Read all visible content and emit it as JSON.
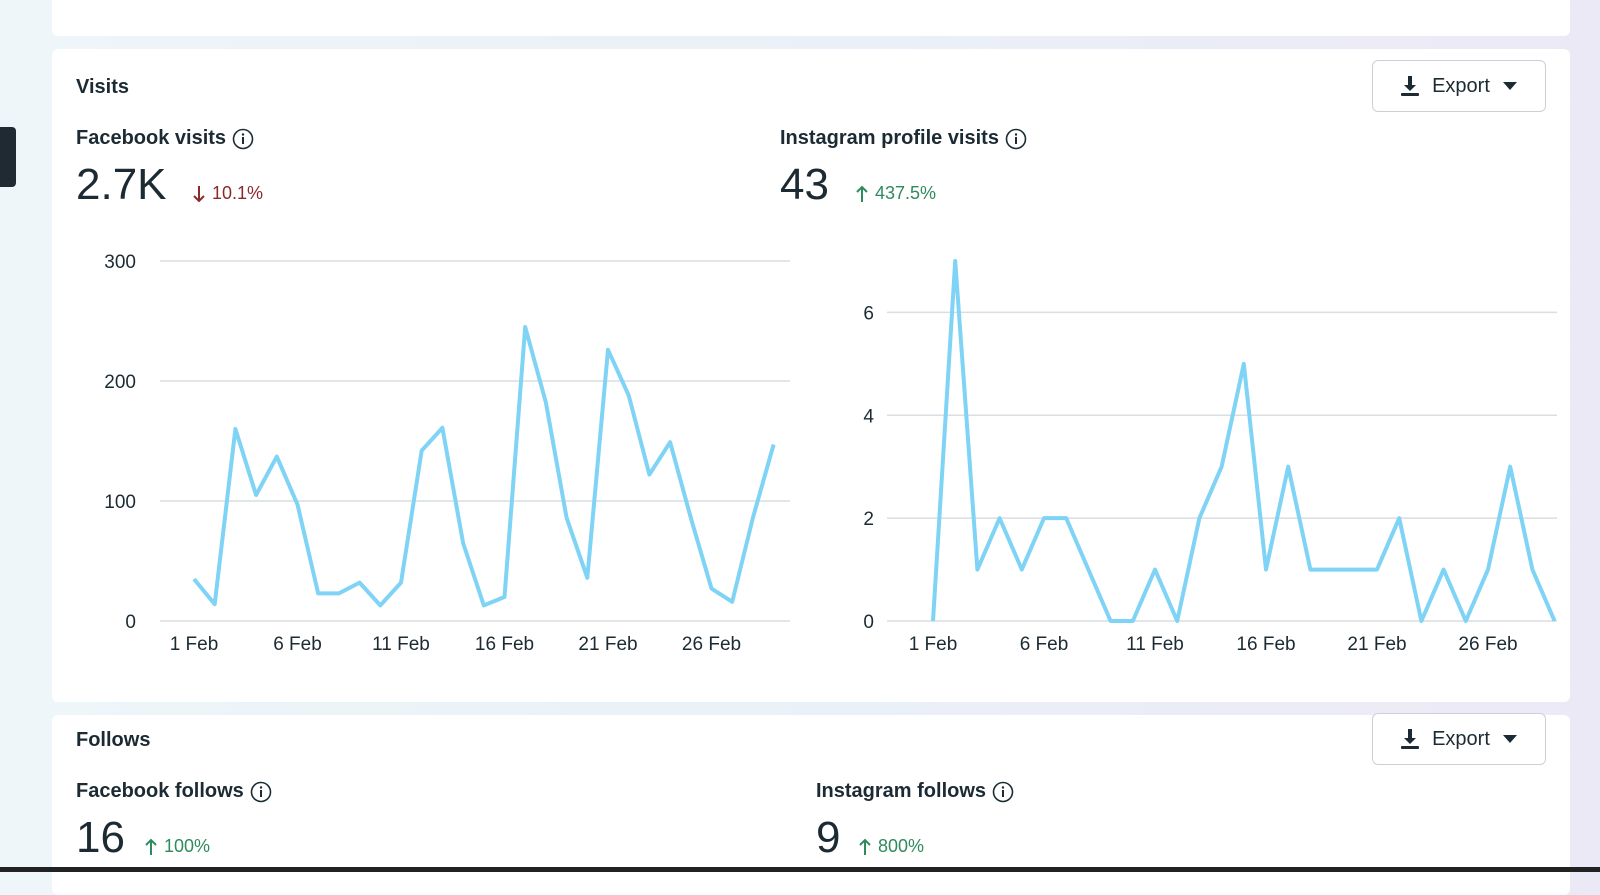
{
  "visits_section": {
    "title": "Visits",
    "export_label": "Export",
    "facebook": {
      "label": "Facebook visits",
      "value": "2.7K",
      "delta": "10.1%",
      "delta_direction": "down"
    },
    "instagram": {
      "label": "Instagram profile visits",
      "value": "43",
      "delta": "437.5%",
      "delta_direction": "up"
    }
  },
  "follows_section": {
    "title": "Follows",
    "export_label": "Export",
    "facebook": {
      "label": "Facebook follows",
      "value": "16",
      "delta": "100%",
      "delta_direction": "up"
    },
    "instagram": {
      "label": "Instagram follows",
      "value": "9",
      "delta": "800%",
      "delta_direction": "up"
    }
  },
  "colors": {
    "line": "#7fd3f5",
    "down": "#8b2a2a",
    "up": "#2f8a5d"
  },
  "chart_data": [
    {
      "type": "line",
      "title": "",
      "xlabel": "",
      "ylabel": "",
      "ylim": [
        0,
        300
      ],
      "yticks": [
        0,
        100,
        200,
        300
      ],
      "x": [
        "1 Feb",
        "2 Feb",
        "3 Feb",
        "4 Feb",
        "5 Feb",
        "6 Feb",
        "7 Feb",
        "8 Feb",
        "9 Feb",
        "10 Feb",
        "11 Feb",
        "12 Feb",
        "13 Feb",
        "14 Feb",
        "15 Feb",
        "16 Feb",
        "17 Feb",
        "18 Feb",
        "19 Feb",
        "20 Feb",
        "21 Feb",
        "22 Feb",
        "23 Feb",
        "24 Feb",
        "25 Feb",
        "26 Feb",
        "27 Feb",
        "28 Feb",
        "29 Feb"
      ],
      "xticks": [
        "1 Feb",
        "6 Feb",
        "11 Feb",
        "16 Feb",
        "21 Feb",
        "26 Feb"
      ],
      "values": [
        35,
        14,
        160,
        105,
        137,
        97,
        23,
        23,
        32,
        13,
        32,
        142,
        161,
        65,
        13,
        20,
        245,
        182,
        86,
        36,
        226,
        188,
        122,
        149,
        86,
        27,
        16,
        86,
        147
      ],
      "grid": true
    },
    {
      "type": "line",
      "title": "",
      "xlabel": "",
      "ylabel": "",
      "ylim": [
        0,
        7
      ],
      "yticks": [
        0,
        2,
        4,
        6
      ],
      "x": [
        "1 Feb",
        "2 Feb",
        "3 Feb",
        "4 Feb",
        "5 Feb",
        "6 Feb",
        "7 Feb",
        "8 Feb",
        "9 Feb",
        "10 Feb",
        "11 Feb",
        "12 Feb",
        "13 Feb",
        "14 Feb",
        "15 Feb",
        "16 Feb",
        "17 Feb",
        "18 Feb",
        "19 Feb",
        "20 Feb",
        "21 Feb",
        "22 Feb",
        "23 Feb",
        "24 Feb",
        "25 Feb",
        "26 Feb",
        "27 Feb",
        "28 Feb",
        "29 Feb"
      ],
      "xticks": [
        "1 Feb",
        "6 Feb",
        "11 Feb",
        "16 Feb",
        "21 Feb",
        "26 Feb"
      ],
      "values": [
        0,
        7,
        1,
        2,
        1,
        2,
        2,
        1,
        0,
        0,
        1,
        0,
        2,
        3,
        5,
        1,
        3,
        1,
        1,
        1,
        1,
        2,
        0,
        1,
        0,
        1,
        3,
        1,
        0
      ],
      "grid": true
    }
  ]
}
